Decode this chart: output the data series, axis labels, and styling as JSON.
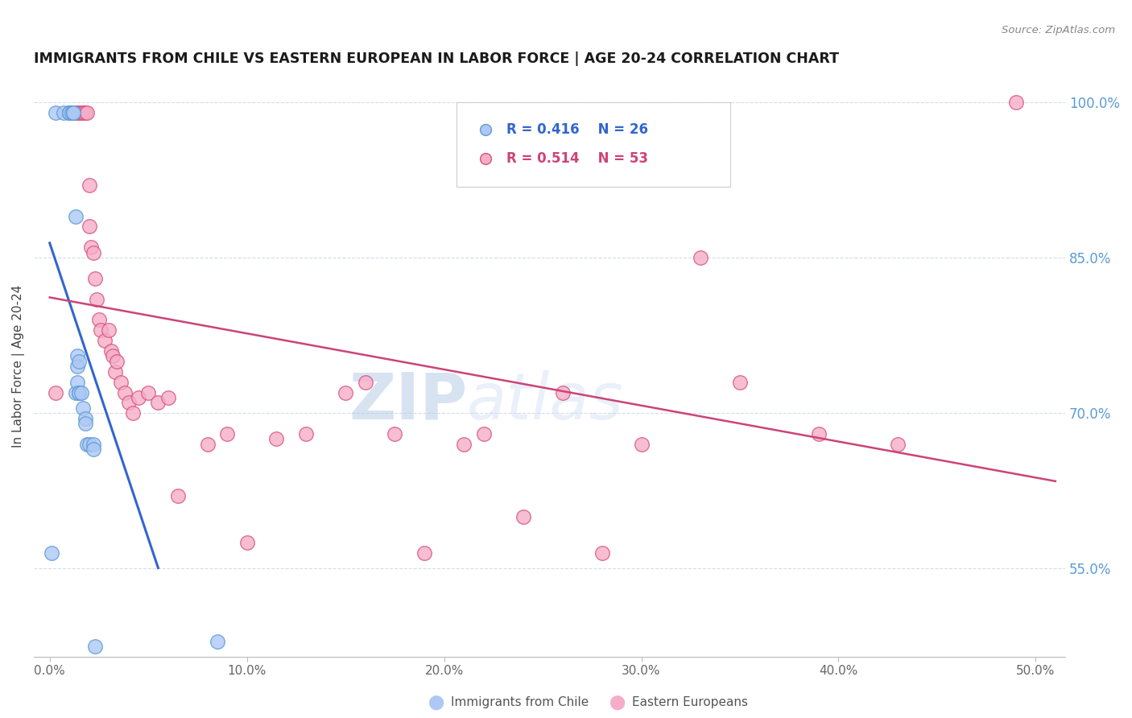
{
  "title": "IMMIGRANTS FROM CHILE VS EASTERN EUROPEAN IN LABOR FORCE | AGE 20-24 CORRELATION CHART",
  "source": "Source: ZipAtlas.com",
  "ylabel_left": "In Labor Force | Age 20-24",
  "x_tick_labels": [
    "0.0%",
    "10.0%",
    "20.0%",
    "30.0%",
    "40.0%",
    "50.0%"
  ],
  "x_tick_vals": [
    0.0,
    0.1,
    0.2,
    0.3,
    0.4,
    0.5
  ],
  "y_tick_labels_right": [
    "100.0%",
    "85.0%",
    "70.0%",
    "55.0%"
  ],
  "y_tick_vals": [
    1.0,
    0.85,
    0.7,
    0.55
  ],
  "y_min": 0.465,
  "y_max": 1.025,
  "x_min": -0.008,
  "x_max": 0.515,
  "watermark_zip": "ZIP",
  "watermark_atlas": "atlas",
  "legend_chile_label": "Immigrants from Chile",
  "legend_ee_label": "Eastern Europeans",
  "legend_chile_r": "R = 0.416",
  "legend_chile_n": "N = 26",
  "legend_ee_r": "R = 0.514",
  "legend_ee_n": "N = 53",
  "chile_color": "#adc8f5",
  "ee_color": "#f5adc8",
  "chile_edge_color": "#5b9bd5",
  "ee_edge_color": "#d9547a",
  "chile_line_color": "#3366cc",
  "ee_line_color": "#cc4477",
  "grid_color": "#d5dce8",
  "title_color": "#1a1a1a",
  "right_axis_color": "#5b9bd5",
  "source_color": "#888888",
  "chile_x": [
    0.001,
    0.003,
    0.007,
    0.01,
    0.01,
    0.011,
    0.012,
    0.012,
    0.013,
    0.013,
    0.014,
    0.014,
    0.014,
    0.015,
    0.015,
    0.015,
    0.016,
    0.017,
    0.018,
    0.018,
    0.019,
    0.02,
    0.022,
    0.022,
    0.023,
    0.085
  ],
  "chile_y": [
    0.565,
    0.99,
    0.99,
    0.99,
    0.99,
    0.99,
    0.99,
    0.99,
    0.89,
    0.72,
    0.755,
    0.745,
    0.73,
    0.75,
    0.72,
    0.72,
    0.72,
    0.705,
    0.695,
    0.69,
    0.67,
    0.67,
    0.67,
    0.665,
    0.475,
    0.48
  ],
  "ee_x": [
    0.003,
    0.01,
    0.013,
    0.015,
    0.015,
    0.016,
    0.017,
    0.017,
    0.018,
    0.019,
    0.02,
    0.02,
    0.021,
    0.022,
    0.023,
    0.024,
    0.025,
    0.026,
    0.028,
    0.03,
    0.031,
    0.032,
    0.033,
    0.034,
    0.036,
    0.038,
    0.04,
    0.042,
    0.045,
    0.05,
    0.055,
    0.06,
    0.065,
    0.08,
    0.09,
    0.1,
    0.115,
    0.13,
    0.15,
    0.16,
    0.175,
    0.19,
    0.21,
    0.22,
    0.24,
    0.26,
    0.28,
    0.3,
    0.33,
    0.35,
    0.39,
    0.43,
    0.49
  ],
  "ee_y": [
    0.72,
    0.99,
    0.99,
    0.99,
    0.99,
    0.99,
    0.99,
    0.99,
    0.99,
    0.99,
    0.92,
    0.88,
    0.86,
    0.855,
    0.83,
    0.81,
    0.79,
    0.78,
    0.77,
    0.78,
    0.76,
    0.755,
    0.74,
    0.75,
    0.73,
    0.72,
    0.71,
    0.7,
    0.715,
    0.72,
    0.71,
    0.715,
    0.62,
    0.67,
    0.68,
    0.575,
    0.675,
    0.68,
    0.72,
    0.73,
    0.68,
    0.565,
    0.67,
    0.68,
    0.6,
    0.72,
    0.565,
    0.67,
    0.85,
    0.73,
    0.68,
    0.67,
    1.0
  ]
}
